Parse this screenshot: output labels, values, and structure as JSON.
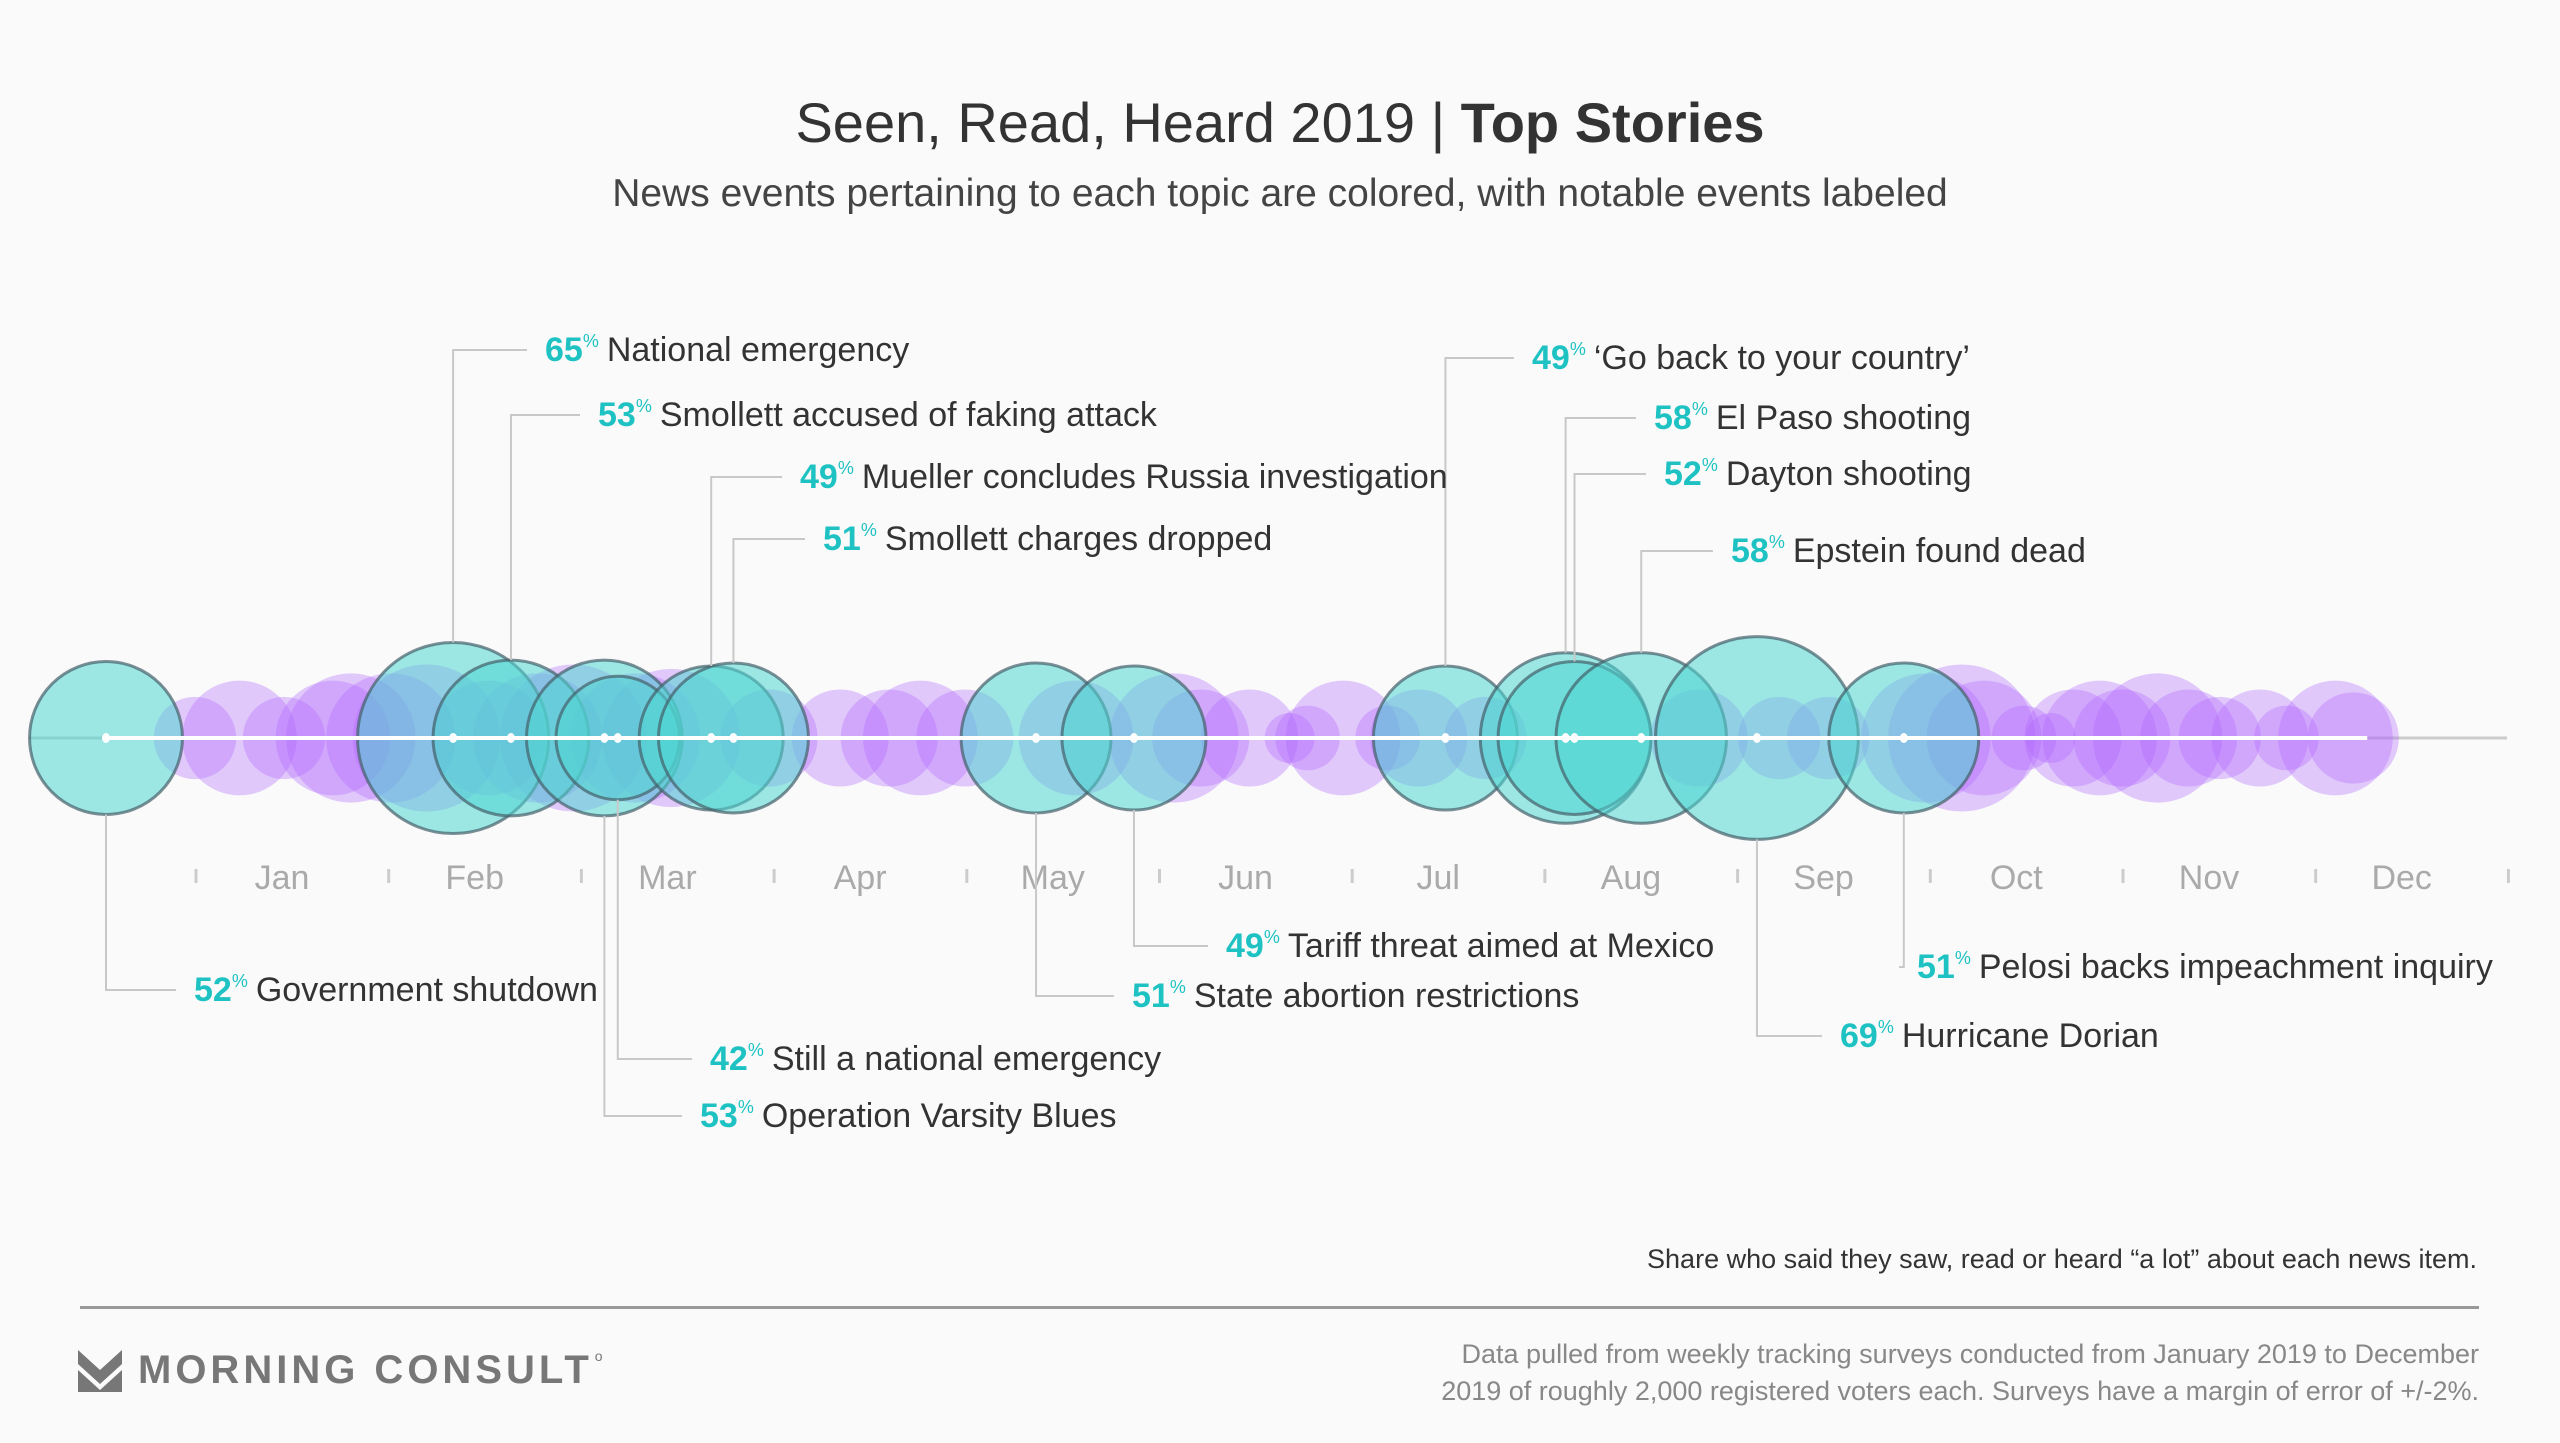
{
  "header": {
    "title_regular": "Seen, Read, Heard 2019 | ",
    "title_bold": "Top Stories",
    "subtitle": "News events pertaining to each topic are colored, with notable events labeled"
  },
  "chart_data": {
    "type": "scatter",
    "title": "Seen, Read, Heard 2019 | Top Stories",
    "x_unit": "week of 2019 (0 = first weekly survey)",
    "size_unit": "percent who saw, read or heard a lot",
    "months": [
      "Jan",
      "Feb",
      "Mar",
      "Apr",
      "May",
      "Jun",
      "Jul",
      "Aug",
      "Sep",
      "Oct",
      "Nov",
      "Dec"
    ],
    "colors": {
      "labeled": "#4fd6d2",
      "unlabeled": "#b163ff",
      "pct_text": "#1fc2c2"
    },
    "labeled_events": [
      {
        "week": 0,
        "pct": 52,
        "pct_label": "52",
        "label": "Government shutdown"
      },
      {
        "week": 7.8,
        "pct": 65,
        "pct_label": "65",
        "label": "National emergency"
      },
      {
        "week": 9.1,
        "pct": 53,
        "pct_label": "53",
        "label": "Smollett accused of faking attack"
      },
      {
        "week": 11.2,
        "pct": 53,
        "pct_label": "53",
        "label": "Operation Varsity Blues"
      },
      {
        "week": 11.5,
        "pct": 42,
        "pct_label": "42",
        "label": "Still a national emergency"
      },
      {
        "week": 13.6,
        "pct": 49,
        "pct_label": "49",
        "label": "Mueller concludes Russia investigation"
      },
      {
        "week": 14.1,
        "pct": 51,
        "pct_label": "51",
        "label": "Smollett charges dropped"
      },
      {
        "week": 20.9,
        "pct": 51,
        "pct_label": "51",
        "label": "State abortion restrictions"
      },
      {
        "week": 23.1,
        "pct": 49,
        "pct_label": "49",
        "label": "Tariff threat aimed at Mexico"
      },
      {
        "week": 30.1,
        "pct": 49,
        "pct_label": "49",
        "label": "‘Go back to your country’"
      },
      {
        "week": 32.8,
        "pct": 58,
        "pct_label": "58",
        "label": "El Paso shooting"
      },
      {
        "week": 33.0,
        "pct": 52,
        "pct_label": "52",
        "label": "Dayton shooting"
      },
      {
        "week": 34.5,
        "pct": 58,
        "pct_label": "58",
        "label": "Epstein found dead"
      },
      {
        "week": 37.1,
        "pct": 69,
        "pct_label": "69",
        "label": "Hurricane Dorian"
      },
      {
        "week": 40.4,
        "pct": 51,
        "pct_label": "51",
        "label": "Pelosi backs impeachment inquiry"
      }
    ],
    "unlabeled_events": [
      {
        "week": 2.0,
        "pct": 28
      },
      {
        "week": 3.0,
        "pct": 39
      },
      {
        "week": 4.0,
        "pct": 28
      },
      {
        "week": 5.1,
        "pct": 39
      },
      {
        "week": 5.5,
        "pct": 44
      },
      {
        "week": 6.4,
        "pct": 44
      },
      {
        "week": 7.2,
        "pct": 50
      },
      {
        "week": 8.6,
        "pct": 39
      },
      {
        "week": 9.7,
        "pct": 44
      },
      {
        "week": 10.5,
        "pct": 50
      },
      {
        "week": 11.9,
        "pct": 44
      },
      {
        "week": 12.7,
        "pct": 47
      },
      {
        "week": 14.9,
        "pct": 33
      },
      {
        "week": 16.5,
        "pct": 33
      },
      {
        "week": 17.6,
        "pct": 33
      },
      {
        "week": 18.3,
        "pct": 39
      },
      {
        "week": 19.3,
        "pct": 33
      },
      {
        "week": 21.8,
        "pct": 39
      },
      {
        "week": 24.0,
        "pct": 44
      },
      {
        "week": 24.6,
        "pct": 33
      },
      {
        "week": 25.7,
        "pct": 33
      },
      {
        "week": 26.6,
        "pct": 17
      },
      {
        "week": 27.0,
        "pct": 22
      },
      {
        "week": 27.8,
        "pct": 39
      },
      {
        "week": 28.8,
        "pct": 22
      },
      {
        "week": 29.5,
        "pct": 33
      },
      {
        "week": 31.0,
        "pct": 28
      },
      {
        "week": 35.8,
        "pct": 33
      },
      {
        "week": 37.6,
        "pct": 28
      },
      {
        "week": 38.7,
        "pct": 28
      },
      {
        "week": 40.9,
        "pct": 44
      },
      {
        "week": 41.7,
        "pct": 50
      },
      {
        "week": 42.2,
        "pct": 39
      },
      {
        "week": 43.1,
        "pct": 22
      },
      {
        "week": 43.7,
        "pct": 17
      },
      {
        "week": 44.2,
        "pct": 33
      },
      {
        "week": 44.8,
        "pct": 39
      },
      {
        "week": 45.3,
        "pct": 33
      },
      {
        "week": 46.1,
        "pct": 44
      },
      {
        "week": 46.8,
        "pct": 33
      },
      {
        "week": 47.5,
        "pct": 28
      },
      {
        "week": 48.4,
        "pct": 33
      },
      {
        "week": 49.0,
        "pct": 22
      },
      {
        "week": 50.1,
        "pct": 39
      },
      {
        "week": 50.5,
        "pct": 31
      }
    ],
    "pct_suffix": "%"
  },
  "note": "Share who said they saw, read or heard “a lot” about each news item.",
  "footer": {
    "brand": "MORNING CONSULT",
    "source_line1": "Data pulled from weekly tracking surveys conducted from January 2019 to December",
    "source_line2": "2019 of roughly 2,000 registered voters each. Surveys have a margin of error of +/-2%."
  }
}
